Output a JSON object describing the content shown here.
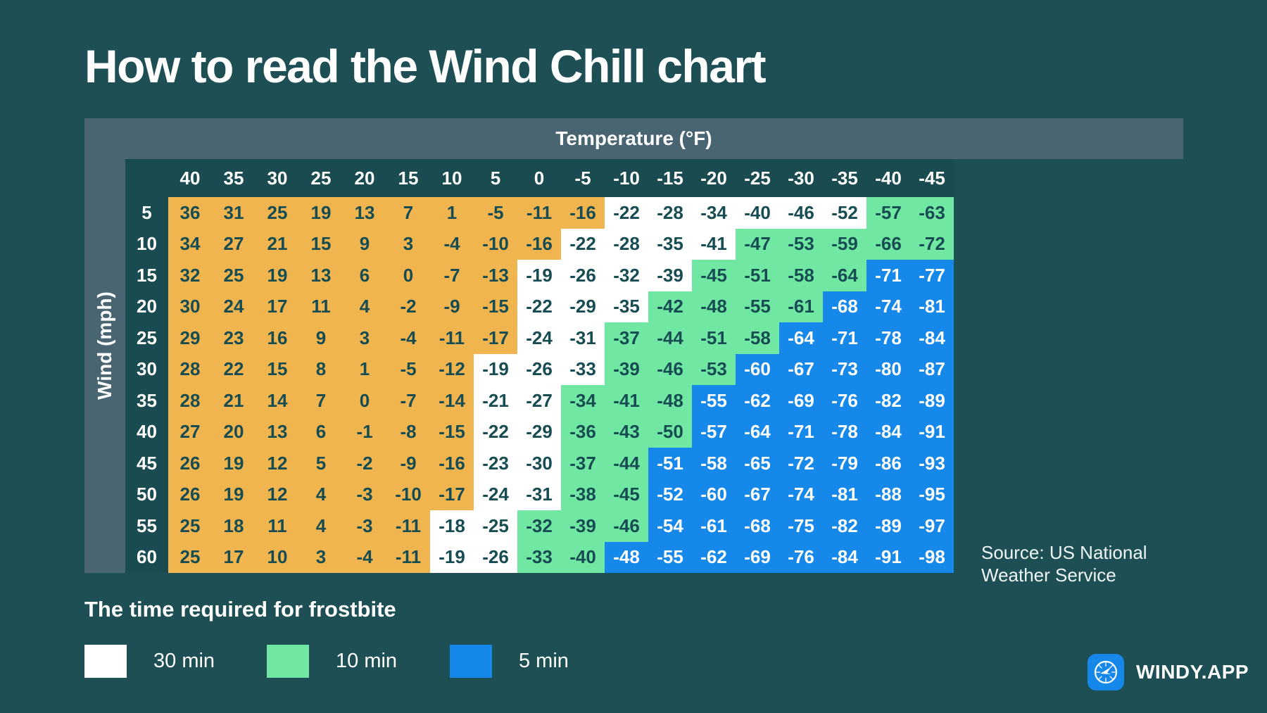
{
  "page": {
    "title": "How to read the Wind Chill chart",
    "source": {
      "line1": "Source: US National",
      "line2": "Weather Service"
    },
    "legend": {
      "title": "The time required for frostbite",
      "items": [
        {
          "label": "30 min",
          "color_key": "w"
        },
        {
          "label": "10 min",
          "color_key": "g"
        },
        {
          "label": "5 min",
          "color_key": "b"
        }
      ]
    },
    "branding": {
      "name": "WINDY.APP",
      "icon": "wind-rose-compass-icon"
    }
  },
  "colors": {
    "background": "#1d4f54",
    "frame": "#4a6572",
    "orange": "#f0b54e",
    "white": "#ffffff",
    "green": "#70e7a2",
    "blue": "#1688ea",
    "cell_text_dark": "#174d52",
    "cell_text_light": "#ffffff"
  },
  "chart_data": {
    "type": "heatmap",
    "title": "How to read the Wind Chill chart",
    "xlabel": "Temperature (°F)",
    "ylabel": "Wind (mph)",
    "legend_position": "bottom-left",
    "color_key_legend": {
      "w": "30 min",
      "g": "10 min",
      "b": "5 min"
    },
    "columns": [
      40,
      35,
      30,
      25,
      20,
      15,
      10,
      5,
      0,
      -5,
      -10,
      -15,
      -20,
      -25,
      -30,
      -35,
      -40,
      -45
    ],
    "rows": [
      {
        "wind": 5,
        "values": [
          36,
          31,
          25,
          19,
          13,
          7,
          1,
          -5,
          -11,
          -16,
          -22,
          -28,
          -34,
          -40,
          -46,
          -52,
          -57,
          -63
        ],
        "colors": "oooooooooowwwwwwgg"
      },
      {
        "wind": 10,
        "values": [
          34,
          27,
          21,
          15,
          9,
          3,
          -4,
          -10,
          -16,
          -22,
          -28,
          -35,
          -41,
          -47,
          -53,
          -59,
          -66,
          -72
        ],
        "colors": "ooooooooowwwwggggg"
      },
      {
        "wind": 15,
        "values": [
          32,
          25,
          19,
          13,
          6,
          0,
          -7,
          -13,
          -19,
          -26,
          -32,
          -39,
          -45,
          -51,
          -58,
          -64,
          -71,
          -77
        ],
        "colors": "oooooooowwwwggggbb"
      },
      {
        "wind": 20,
        "values": [
          30,
          24,
          17,
          11,
          4,
          -2,
          -9,
          -15,
          -22,
          -29,
          -35,
          -42,
          -48,
          -55,
          -61,
          -68,
          -74,
          -81
        ],
        "colors": "oooooooowwwggggbbb"
      },
      {
        "wind": 25,
        "values": [
          29,
          23,
          16,
          9,
          3,
          -4,
          -11,
          -17,
          -24,
          -31,
          -37,
          -44,
          -51,
          -58,
          -64,
          -71,
          -78,
          -84
        ],
        "colors": "oooooooowwggggbbbb"
      },
      {
        "wind": 30,
        "values": [
          28,
          22,
          15,
          8,
          1,
          -5,
          -12,
          -19,
          -26,
          -33,
          -39,
          -46,
          -53,
          -60,
          -67,
          -73,
          -80,
          -87
        ],
        "colors": "ooooooowwwgggbbbbb"
      },
      {
        "wind": 35,
        "values": [
          28,
          21,
          14,
          7,
          0,
          -7,
          -14,
          -21,
          -27,
          -34,
          -41,
          -48,
          -55,
          -62,
          -69,
          -76,
          -82,
          -89
        ],
        "colors": "ooooooowwgggbbbbbb"
      },
      {
        "wind": 40,
        "values": [
          27,
          20,
          13,
          6,
          -1,
          -8,
          -15,
          -22,
          -29,
          -36,
          -43,
          -50,
          -57,
          -64,
          -71,
          -78,
          -84,
          -91
        ],
        "colors": "ooooooowwgggbbbbbb"
      },
      {
        "wind": 45,
        "values": [
          26,
          19,
          12,
          5,
          -2,
          -9,
          -16,
          -23,
          -30,
          -37,
          -44,
          -51,
          -58,
          -65,
          -72,
          -79,
          -86,
          -93
        ],
        "colors": "ooooooowwggbbbbbbb"
      },
      {
        "wind": 50,
        "values": [
          26,
          19,
          12,
          4,
          -3,
          -10,
          -17,
          -24,
          -31,
          -38,
          -45,
          -52,
          -60,
          -67,
          -74,
          -81,
          -88,
          -95
        ],
        "colors": "ooooooowwggbbbbbbb"
      },
      {
        "wind": 55,
        "values": [
          25,
          18,
          11,
          4,
          -3,
          -11,
          -18,
          -25,
          -32,
          -39,
          -46,
          -54,
          -61,
          -68,
          -75,
          -82,
          -89,
          -97
        ],
        "colors": "oooooowwgggbbbbbbb"
      },
      {
        "wind": 60,
        "values": [
          25,
          17,
          10,
          3,
          -4,
          -11,
          -19,
          -26,
          -33,
          -40,
          -48,
          -55,
          -62,
          -69,
          -76,
          -84,
          -91,
          -98
        ],
        "colors": "oooooowwggbbbbbbbb"
      }
    ]
  }
}
